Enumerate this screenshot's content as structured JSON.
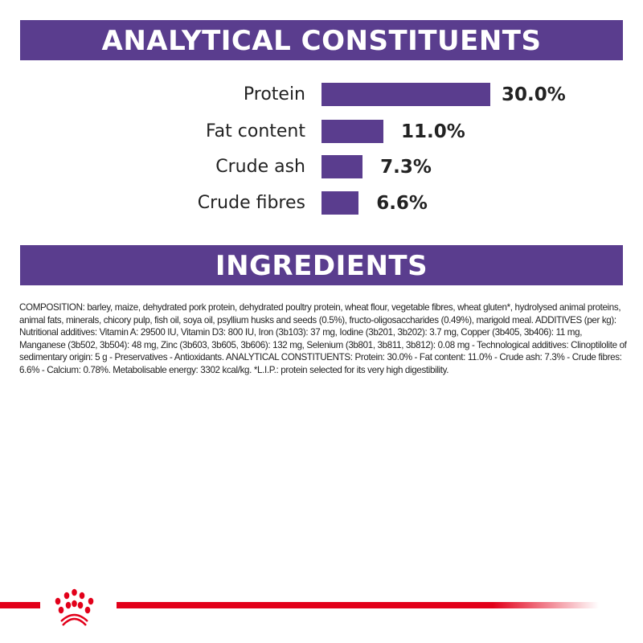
{
  "header1": "ANALYTICAL CONSTITUENTS",
  "header2": "INGREDIENTS",
  "chart_data": {
    "type": "bar",
    "orientation": "horizontal",
    "categories": [
      "Protein",
      "Fat content",
      "Crude ash",
      "Crude fibres"
    ],
    "values": [
      30.0,
      11.0,
      7.3,
      6.6
    ],
    "labels": [
      "30.0%",
      "11.0%",
      "7.3%",
      "6.6%"
    ],
    "unit": "%",
    "bar_color": "#5a3d8e",
    "grid": false
  },
  "composition": "COMPOSITION: barley, maize, dehydrated pork protein, dehydrated poultry protein, wheat flour, vegetable fibres, wheat gluten*, hydrolysed animal proteins, animal fats, minerals, chicory pulp, fish oil, soya oil, psyllium husks and seeds (0.5%), fructo-oligosaccharides (0.49%), marigold meal. ADDITIVES (per kg): Nutritional additives: Vitamin A: 29500 IU, Vitamin D3: 800 IU, Iron (3b103): 37 mg, Iodine (3b201, 3b202): 3.7 mg, Copper (3b405, 3b406): 11 mg, Manganese (3b502, 3b504): 48 mg, Zinc (3b603, 3b605, 3b606): 132 mg, Selenium (3b801, 3b811, 3b812): 0.08 mg - Technological additives: Clinoptilolite of sedimentary origin: 5 g - Preservatives - Antioxidants. ANALYTICAL CONSTITUENTS: Protein: 30.0% - Fat content: 11.0% - Crude ash: 7.3% - Crude fibres: 6.6% - Calcium: 0.78%. Metabolisable energy: 3302 kcal/kg. *L.I.P.: protein selected for its very high digestibility.",
  "footer": {
    "logo": "royal-canin-crown-logo",
    "accent": "#e2001a"
  }
}
